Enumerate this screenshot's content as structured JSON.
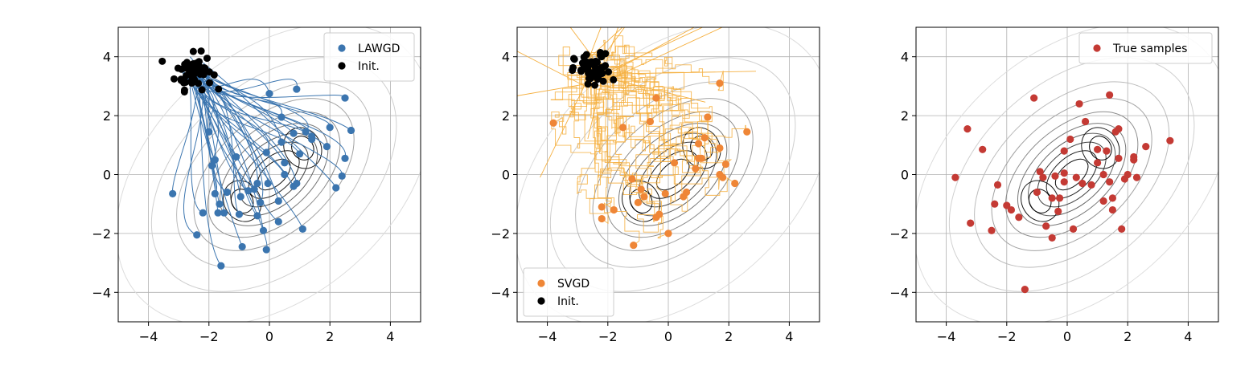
{
  "chart_data": [
    {
      "type": "scatter",
      "panel": "lawgd",
      "xlim": [
        -5,
        5
      ],
      "ylim": [
        -5,
        5
      ],
      "xticks": [
        -4,
        -2,
        0,
        2,
        4
      ],
      "yticks": [
        -4,
        -2,
        0,
        2,
        4
      ],
      "tick_labels": [
        "−4",
        "−2",
        "0",
        "2",
        "4"
      ],
      "grid": true,
      "background_contours": true,
      "legend_position": "top-right",
      "legend": [
        "LAWGD",
        "Init."
      ],
      "series": [
        {
          "name": "LAWGD",
          "color": "#3b75af",
          "points": [
            [
              -3.2,
              -0.65
            ],
            [
              -2.4,
              -2.05
            ],
            [
              -2.2,
              -1.3
            ],
            [
              -2.0,
              1.45
            ],
            [
              -1.9,
              0.3
            ],
            [
              -1.8,
              0.5
            ],
            [
              -1.8,
              -0.65
            ],
            [
              -1.7,
              -1.3
            ],
            [
              -1.65,
              -1.0
            ],
            [
              -1.5,
              -1.3
            ],
            [
              -1.6,
              -3.1
            ],
            [
              -1.4,
              -0.6
            ],
            [
              -1.1,
              0.6
            ],
            [
              -1.0,
              -1.35
            ],
            [
              -0.95,
              -0.75
            ],
            [
              -0.9,
              -2.45
            ],
            [
              -0.7,
              -0.55
            ],
            [
              -0.5,
              -0.5
            ],
            [
              -0.4,
              -0.3
            ],
            [
              -0.4,
              -1.4
            ],
            [
              -0.3,
              -0.95
            ],
            [
              -0.2,
              -1.9
            ],
            [
              -0.1,
              0.75
            ],
            [
              -0.1,
              -2.55
            ],
            [
              -0.05,
              -0.3
            ],
            [
              0.0,
              2.75
            ],
            [
              0.3,
              -0.9
            ],
            [
              0.3,
              -1.6
            ],
            [
              0.4,
              1.95
            ],
            [
              0.4,
              1.1
            ],
            [
              0.5,
              0.4
            ],
            [
              0.8,
              1.4
            ],
            [
              0.8,
              -0.4
            ],
            [
              0.9,
              -0.3
            ],
            [
              0.9,
              2.9
            ],
            [
              1.0,
              0.7
            ],
            [
              1.1,
              -1.85
            ],
            [
              1.2,
              1.45
            ],
            [
              1.4,
              1.3
            ],
            [
              1.4,
              1.2
            ],
            [
              1.9,
              0.95
            ],
            [
              2.0,
              1.6
            ],
            [
              2.2,
              -0.45
            ],
            [
              2.4,
              -0.05
            ],
            [
              2.5,
              2.6
            ],
            [
              2.5,
              0.55
            ],
            [
              2.7,
              1.5
            ],
            [
              0.5,
              0.0
            ]
          ]
        },
        {
          "name": "Init.",
          "color": "#000000",
          "center": [
            -2.5,
            3.5
          ],
          "spread": 0.3
        }
      ]
    },
    {
      "type": "scatter",
      "panel": "svgd",
      "xlim": [
        -5,
        5
      ],
      "ylim": [
        -5,
        5
      ],
      "xticks": [
        -4,
        -2,
        0,
        2,
        4
      ],
      "yticks": [
        -4,
        -2,
        0,
        2,
        4
      ],
      "tick_labels": [
        "−4",
        "−2",
        "0",
        "2",
        "4"
      ],
      "grid": true,
      "background_contours": true,
      "legend_position": "bottom-left",
      "legend": [
        "SVGD",
        "Init."
      ],
      "series": [
        {
          "name": "SVGD",
          "color": "#ef8636",
          "points": [
            [
              -3.8,
              1.75
            ],
            [
              -2.2,
              -1.5
            ],
            [
              -2.2,
              -1.1
            ],
            [
              -1.8,
              -1.2
            ],
            [
              -1.5,
              1.6
            ],
            [
              -1.2,
              -0.15
            ],
            [
              -1.15,
              -2.4
            ],
            [
              -1.0,
              -0.95
            ],
            [
              -0.8,
              -0.75
            ],
            [
              -0.6,
              1.8
            ],
            [
              -0.4,
              2.6
            ],
            [
              -0.4,
              -1.45
            ],
            [
              -0.3,
              -1.35
            ],
            [
              -0.1,
              -0.65
            ],
            [
              0.0,
              -2.0
            ],
            [
              0.2,
              0.4
            ],
            [
              0.5,
              -0.75
            ],
            [
              1.0,
              0.55
            ],
            [
              1.1,
              0.55
            ],
            [
              1.0,
              1.05
            ],
            [
              1.2,
              1.25
            ],
            [
              1.3,
              1.95
            ],
            [
              1.7,
              0.9
            ],
            [
              1.7,
              0.0
            ],
            [
              1.8,
              -0.1
            ],
            [
              1.9,
              0.35
            ],
            [
              2.2,
              -0.3
            ],
            [
              2.6,
              1.45
            ],
            [
              1.7,
              3.1
            ],
            [
              0.6,
              -0.6
            ],
            [
              -0.9,
              -0.5
            ],
            [
              0.9,
              0.2
            ]
          ]
        },
        {
          "name": "Init.",
          "color": "#000000",
          "center": [
            -2.5,
            3.5
          ],
          "spread": 0.3
        }
      ]
    },
    {
      "type": "scatter",
      "panel": "true",
      "xlim": [
        -5,
        5
      ],
      "ylim": [
        -5,
        5
      ],
      "xticks": [
        -4,
        -2,
        0,
        2,
        4
      ],
      "yticks": [
        -4,
        -2,
        0,
        2,
        4
      ],
      "tick_labels": [
        "−4",
        "−2",
        "0",
        "2",
        "4"
      ],
      "grid": true,
      "background_contours": true,
      "legend_position": "top-right",
      "legend": [
        "True samples"
      ],
      "series": [
        {
          "name": "True samples",
          "color": "#c43a34",
          "points": [
            [
              -3.7,
              -0.1
            ],
            [
              -3.3,
              1.55
            ],
            [
              -3.2,
              -1.65
            ],
            [
              -2.8,
              0.85
            ],
            [
              -2.5,
              -1.9
            ],
            [
              -2.4,
              -1.0
            ],
            [
              -2.3,
              -0.35
            ],
            [
              -2.0,
              -1.05
            ],
            [
              -1.85,
              -1.2
            ],
            [
              -1.6,
              -1.45
            ],
            [
              -1.4,
              -3.9
            ],
            [
              -1.1,
              2.6
            ],
            [
              -1.0,
              -0.6
            ],
            [
              -0.9,
              0.1
            ],
            [
              -0.8,
              -0.1
            ],
            [
              -0.7,
              -1.75
            ],
            [
              -0.5,
              -2.15
            ],
            [
              -0.5,
              -0.8
            ],
            [
              -0.4,
              -0.05
            ],
            [
              -0.3,
              -1.25
            ],
            [
              -0.25,
              -0.8
            ],
            [
              -0.1,
              0.8
            ],
            [
              -0.1,
              -0.25
            ],
            [
              -0.1,
              0.05
            ],
            [
              0.1,
              1.2
            ],
            [
              0.2,
              -1.85
            ],
            [
              0.3,
              -0.1
            ],
            [
              0.4,
              2.4
            ],
            [
              0.5,
              -0.3
            ],
            [
              0.6,
              1.8
            ],
            [
              0.8,
              -0.35
            ],
            [
              1.0,
              0.4
            ],
            [
              1.0,
              0.85
            ],
            [
              1.2,
              -0.9
            ],
            [
              1.3,
              0.8
            ],
            [
              1.4,
              -0.25
            ],
            [
              1.4,
              2.7
            ],
            [
              1.5,
              -1.2
            ],
            [
              1.5,
              -0.8
            ],
            [
              1.6,
              1.45
            ],
            [
              1.7,
              1.55
            ],
            [
              1.7,
              0.55
            ],
            [
              1.8,
              -1.85
            ],
            [
              1.9,
              -0.15
            ],
            [
              2.0,
              0.0
            ],
            [
              2.2,
              0.5
            ],
            [
              2.2,
              0.6
            ],
            [
              2.3,
              -0.1
            ],
            [
              2.6,
              0.95
            ],
            [
              3.4,
              1.15
            ],
            [
              1.2,
              0.0
            ]
          ]
        }
      ]
    }
  ]
}
